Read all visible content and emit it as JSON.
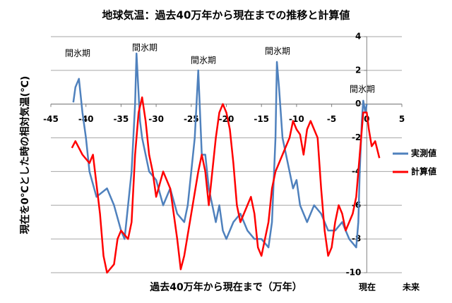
{
  "chart_data": {
    "type": "line",
    "title": "地球気温：過去40万年から現在までの推移と計算値",
    "x_label": "過去40万年から現在まで（万年）",
    "y_label": "現在を0℃とした時の相対気温(℃)",
    "annotations": [
      "間氷期",
      "間氷期",
      "間氷期",
      "間氷期",
      "間氷期",
      "現在",
      "未来"
    ],
    "xlim": [
      -45,
      5
    ],
    "xticks": [
      -45,
      -40,
      -35,
      -30,
      -25,
      -20,
      -15,
      -10,
      -5,
      0,
      5
    ],
    "ylim": [
      -10,
      4
    ],
    "yticks": [
      -10,
      -8,
      -6,
      -4,
      -2,
      0,
      2,
      4
    ],
    "grid": true,
    "legend": "right",
    "series": [
      {
        "name": "実測値",
        "color": "#4f81bd",
        "x": [
          -41.8,
          -41.5,
          -41,
          -40.5,
          -40,
          -39.5,
          -38.5,
          -37,
          -36,
          -35,
          -34.5,
          -34,
          -33.5,
          -33,
          -32.8,
          -32.3,
          -32,
          -31,
          -30,
          -29,
          -28,
          -27,
          -26,
          -25.5,
          -25,
          -24.5,
          -24,
          -23.5,
          -23,
          -22.5,
          -22,
          -21.5,
          -21,
          -20.5,
          -20,
          -19,
          -18,
          -17,
          -16,
          -15,
          -14,
          -13.5,
          -13,
          -12.8,
          -12.5,
          -12,
          -11,
          -10.5,
          -10,
          -9.5,
          -8.5,
          -7.5,
          -6.5,
          -5.5,
          -4.5,
          -3.5,
          -2.5,
          -1.5,
          -1.2,
          -1,
          -0.7,
          -0.5,
          -0.2,
          0
        ],
        "values": [
          0.1,
          1,
          1.5,
          -0.5,
          -2,
          -4,
          -5.5,
          -5,
          -6,
          -7.5,
          -8,
          -6,
          -4,
          0,
          3,
          -1,
          -2,
          -4,
          -4.5,
          -6,
          -5,
          -6.5,
          -7,
          -6,
          -4,
          -2,
          2,
          -3,
          -3,
          -5,
          -6,
          -7,
          -6,
          -7.5,
          -8,
          -7,
          -6.5,
          -7.5,
          -8,
          -8,
          -8.5,
          -7,
          -2,
          2.5,
          1,
          -2,
          -4,
          -5,
          -4.5,
          -6,
          -7,
          -6,
          -6.5,
          -7.5,
          -7.5,
          -7,
          -8,
          -8.5,
          -7,
          -4,
          -1,
          0.2,
          -0.5,
          0
        ]
      },
      {
        "name": "計算値",
        "color": "#ff0000",
        "x": [
          -42,
          -41.5,
          -40.5,
          -39.5,
          -39,
          -38,
          -37.5,
          -37,
          -36,
          -35.5,
          -35,
          -34,
          -33.5,
          -33,
          -32.5,
          -32,
          -31.5,
          -31,
          -30.5,
          -30,
          -29,
          -28,
          -27,
          -26.5,
          -26,
          -25,
          -24,
          -23.5,
          -23,
          -22.5,
          -22,
          -21.5,
          -21,
          -20.5,
          -20,
          -19.5,
          -19,
          -18.5,
          -18,
          -17,
          -16.5,
          -16,
          -15.5,
          -15,
          -14,
          -13.5,
          -13,
          -12.5,
          -12,
          -11,
          -10.5,
          -10,
          -9.5,
          -9,
          -8.5,
          -8,
          -7.5,
          -7,
          -6.5,
          -6,
          -5.5,
          -5,
          -4.5,
          -4,
          -3.5,
          -3,
          -2.5,
          -2,
          -1.5,
          -1,
          -0.5,
          0,
          0.3,
          0.7,
          1.2,
          1.8
        ],
        "values": [
          -2.6,
          -2.2,
          -3,
          -3.5,
          -3,
          -6.5,
          -9,
          -10,
          -9.5,
          -8,
          -7.5,
          -8,
          -7,
          -3,
          -0.5,
          0.4,
          -1,
          -3,
          -4,
          -5.5,
          -4,
          -5,
          -8,
          -9.8,
          -9,
          -6.5,
          -4,
          -3,
          -4,
          -6,
          -4,
          -2,
          -0.5,
          0,
          -0.5,
          -1.5,
          -3.5,
          -6,
          -7,
          -6,
          -5.5,
          -6.5,
          -8.5,
          -9,
          -7,
          -5,
          -4,
          -3.5,
          -3,
          -2,
          -1,
          -1.5,
          -1.8,
          -3,
          -1.5,
          -1,
          -1.5,
          -2,
          -5,
          -7.5,
          -9,
          -8.5,
          -7,
          -6,
          -6.5,
          -7.5,
          -7,
          -6.5,
          -5.5,
          -3,
          -0.5,
          -0.5,
          -1.5,
          -2.5,
          -2.2,
          -3.2
        ]
      }
    ]
  }
}
